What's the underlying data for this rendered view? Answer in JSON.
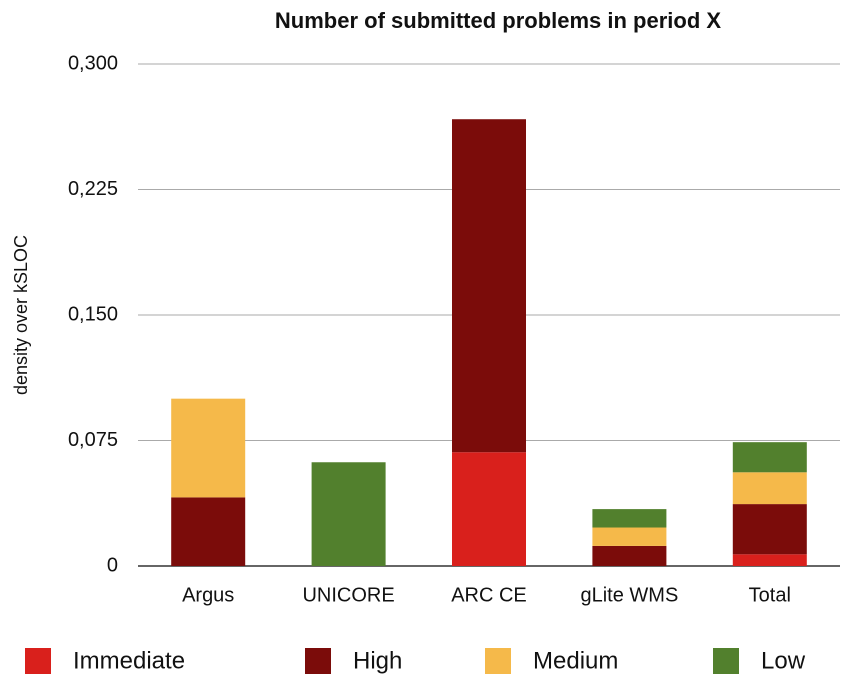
{
  "chart_data": {
    "type": "stacked_bar",
    "title": "Number of submitted problems in period X",
    "y_label": "density over kSLOC",
    "categories": [
      "Argus",
      "UNICORE",
      "ARC CE",
      "gLite WMS",
      "Total"
    ],
    "series": [
      {
        "name": "Immediate",
        "color": "#d9201c",
        "values": [
          0,
          0,
          0.068,
          0,
          0.007
        ]
      },
      {
        "name": "High",
        "color": "#7b0c0a",
        "values": [
          0.041,
          0,
          0.199,
          0.012,
          0.03
        ]
      },
      {
        "name": "Medium",
        "color": "#f5b94a",
        "values": [
          0.059,
          0,
          0,
          0.011,
          0.019
        ]
      },
      {
        "name": "Low",
        "color": "#52802d",
        "values": [
          0,
          0.062,
          0,
          0.011,
          0.018
        ]
      }
    ],
    "ylim": [
      0,
      0.3
    ],
    "yticks": [
      0,
      {
        "value": 0.075,
        "label": "0,075"
      },
      {
        "value": 0.15,
        "label": "0,150"
      },
      {
        "value": 0.225,
        "label": "0,225"
      },
      {
        "value": 0.3,
        "label": "0,300"
      }
    ],
    "grid": true,
    "legend": "bottom"
  }
}
